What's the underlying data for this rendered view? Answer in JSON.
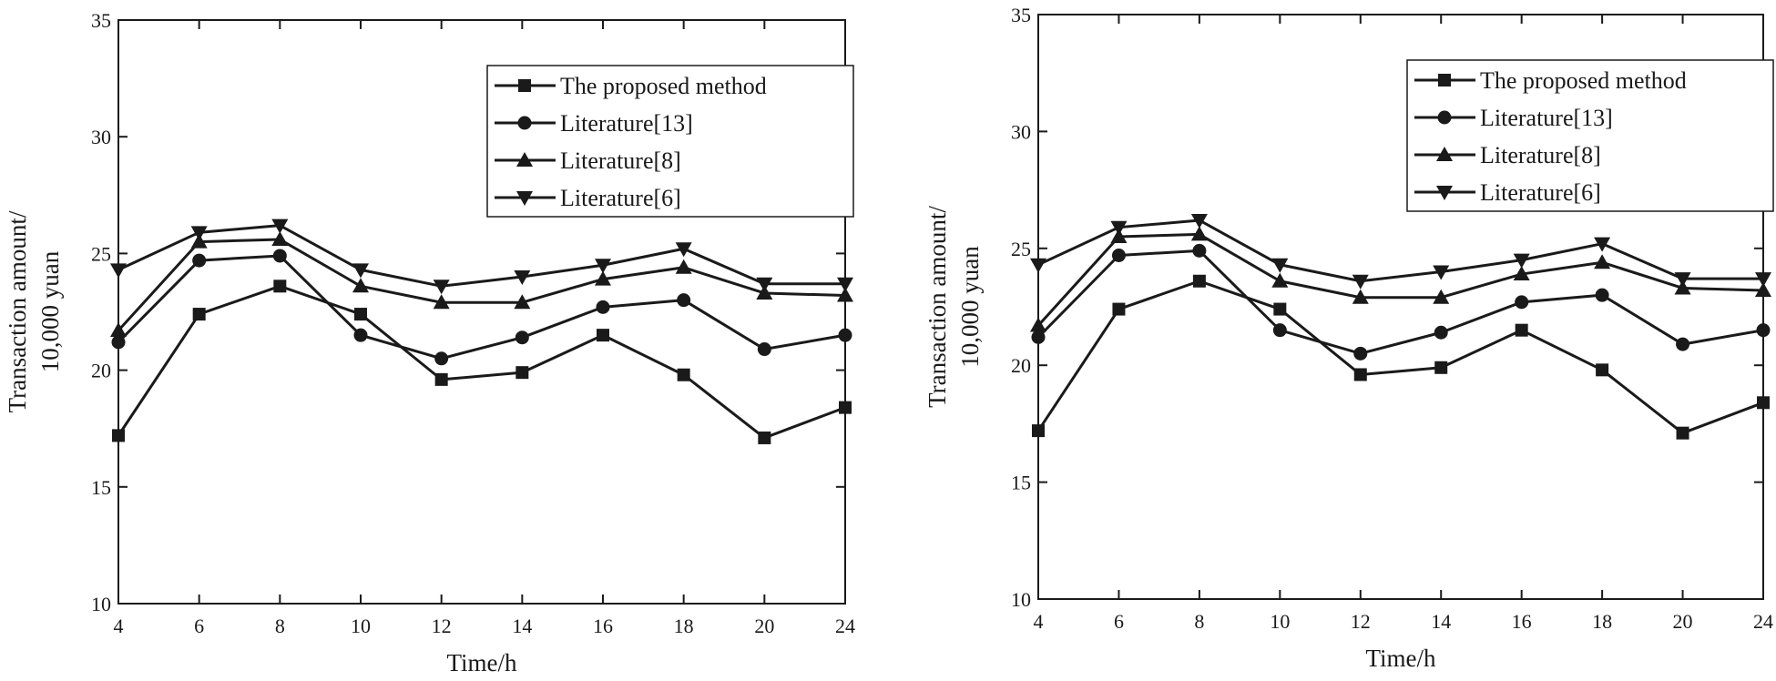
{
  "chart_data": [
    {
      "type": "line",
      "title": "",
      "xlabel": "Time/h",
      "ylabel_lines": [
        "Transaction amount/",
        "10,000 yuan"
      ],
      "x": [
        4,
        6,
        8,
        10,
        12,
        14,
        16,
        18,
        20,
        24
      ],
      "x_ticks": [
        4,
        6,
        8,
        10,
        12,
        14,
        16,
        18,
        20,
        24
      ],
      "y_ticks": [
        10,
        15,
        20,
        25,
        30,
        35
      ],
      "ylim": [
        10,
        35
      ],
      "grid": false,
      "legend_position": "top-right",
      "series": [
        {
          "name": "The proposed method",
          "marker": "square",
          "values": [
            17.2,
            22.4,
            23.6,
            22.4,
            19.6,
            19.9,
            21.5,
            19.8,
            17.1,
            18.4
          ]
        },
        {
          "name": "Literature[13]",
          "marker": "circle",
          "values": [
            21.2,
            24.7,
            24.9,
            21.5,
            20.5,
            21.4,
            22.7,
            23.0,
            20.9,
            21.5
          ]
        },
        {
          "name": "Literature[8]",
          "marker": "triangle-up",
          "values": [
            21.7,
            25.5,
            25.6,
            23.6,
            22.9,
            22.9,
            23.9,
            24.4,
            23.3,
            23.2
          ]
        },
        {
          "name": "Literature[6]",
          "marker": "triangle-down",
          "values": [
            24.3,
            25.9,
            26.2,
            24.3,
            23.6,
            24.0,
            24.5,
            25.2,
            23.7,
            23.7
          ]
        }
      ]
    },
    {
      "type": "line",
      "title": "",
      "xlabel": "Time/h",
      "ylabel_lines": [
        "Transaction amount/",
        "10,000 yuan"
      ],
      "x": [
        4,
        6,
        8,
        10,
        12,
        14,
        16,
        18,
        20,
        24
      ],
      "x_ticks": [
        4,
        6,
        8,
        10,
        12,
        14,
        16,
        18,
        20,
        24
      ],
      "y_ticks": [
        10,
        15,
        20,
        25,
        30,
        35
      ],
      "ylim": [
        10,
        35
      ],
      "grid": false,
      "legend_position": "top-right",
      "series": [
        {
          "name": "The proposed method",
          "marker": "square",
          "values": [
            17.2,
            22.4,
            23.6,
            22.4,
            19.6,
            19.9,
            21.5,
            19.8,
            17.1,
            18.4
          ]
        },
        {
          "name": "Literature[13]",
          "marker": "circle",
          "values": [
            21.2,
            24.7,
            24.9,
            21.5,
            20.5,
            21.4,
            22.7,
            23.0,
            20.9,
            21.5
          ]
        },
        {
          "name": "Literature[8]",
          "marker": "triangle-up",
          "values": [
            21.7,
            25.5,
            25.6,
            23.6,
            22.9,
            22.9,
            23.9,
            24.4,
            23.3,
            23.2
          ]
        },
        {
          "name": "Literature[6]",
          "marker": "triangle-down",
          "values": [
            24.3,
            25.9,
            26.2,
            24.3,
            23.6,
            24.0,
            24.5,
            25.2,
            23.7,
            23.7
          ]
        }
      ]
    }
  ],
  "style": {
    "line_color": "#1a1a1a",
    "background": "#ffffff"
  }
}
